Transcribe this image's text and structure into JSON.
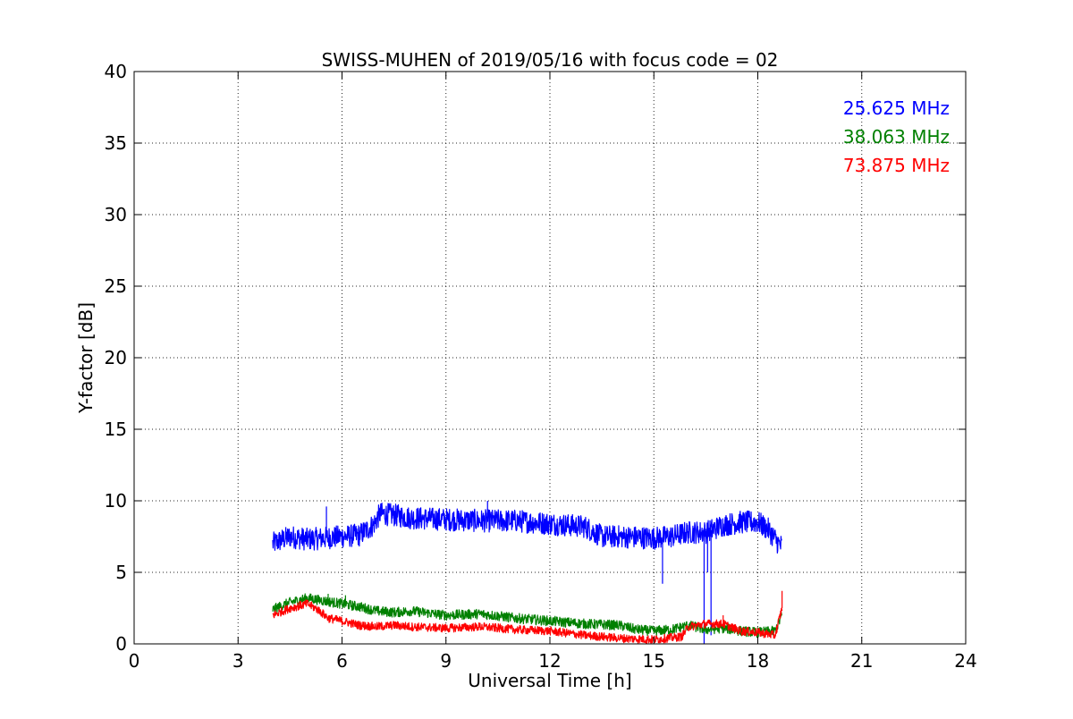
{
  "chart_data": {
    "type": "line",
    "title": "SWISS-MUHEN of 2019/05/16 with focus code = 02",
    "xlabel": "Universal Time [h]",
    "ylabel": "Y-factor [dB]",
    "xlim": [
      0,
      24
    ],
    "ylim": [
      0,
      40
    ],
    "xticks": [
      "0",
      "3",
      "6",
      "9",
      "12",
      "15",
      "18",
      "21",
      "24"
    ],
    "yticks": [
      "0",
      "5",
      "10",
      "15",
      "20",
      "25",
      "30",
      "35",
      "40"
    ],
    "grid": true,
    "legend_position": "top-right",
    "series": [
      {
        "name": "25.625 MHz",
        "color": "#0000ff",
        "noise": 0.8,
        "x": [
          4.0,
          4.5,
          5.0,
          5.5,
          6.0,
          6.5,
          6.9,
          7.1,
          7.5,
          8.0,
          9.0,
          10.0,
          11.0,
          12.0,
          13.0,
          13.5,
          14.0,
          15.0,
          15.5,
          16.0,
          16.5,
          17.0,
          17.5,
          18.0,
          18.3,
          18.6,
          18.7
        ],
        "y": [
          7.0,
          7.5,
          7.3,
          7.4,
          7.5,
          7.6,
          8.3,
          9.1,
          9.0,
          8.8,
          8.7,
          8.6,
          8.6,
          8.4,
          8.2,
          7.5,
          7.5,
          7.4,
          7.5,
          7.8,
          7.8,
          8.3,
          8.5,
          8.5,
          8.0,
          7.0,
          6.8
        ],
        "spikes": [
          {
            "x": 15.25,
            "y": 4.2
          },
          {
            "x": 16.45,
            "y": 0.0
          },
          {
            "x": 16.65,
            "y": 0.6
          },
          {
            "x": 16.55,
            "y": 5.0
          },
          {
            "x": 5.55,
            "y": 9.6
          },
          {
            "x": 10.2,
            "y": 10.0
          }
        ]
      },
      {
        "name": "38.063 MHz",
        "color": "#008000",
        "noise": 0.35,
        "x": [
          4.0,
          4.5,
          5.0,
          5.5,
          6.0,
          6.5,
          7.0,
          7.5,
          8.0,
          9.0,
          10.0,
          11.0,
          12.0,
          13.0,
          14.0,
          14.5,
          15.0,
          15.5,
          16.0,
          16.5,
          17.0,
          17.5,
          18.0,
          18.5,
          18.7
        ],
        "y": [
          2.4,
          2.9,
          3.2,
          3.0,
          2.8,
          2.6,
          2.3,
          2.2,
          2.3,
          2.0,
          2.1,
          1.8,
          1.6,
          1.4,
          1.3,
          1.0,
          0.9,
          1.0,
          1.3,
          1.0,
          1.1,
          0.9,
          0.8,
          0.9,
          2.0
        ],
        "spikes": [
          {
            "x": 5.6,
            "y": 3.5
          },
          {
            "x": 6.1,
            "y": 3.4
          }
        ]
      },
      {
        "name": "73.875 MHz",
        "color": "#ff0000",
        "noise": 0.3,
        "x": [
          4.0,
          4.5,
          5.0,
          5.3,
          5.6,
          6.0,
          6.5,
          7.0,
          7.5,
          8.0,
          9.0,
          10.0,
          11.0,
          12.0,
          13.0,
          14.0,
          15.0,
          15.8,
          16.0,
          16.5,
          17.0,
          17.5,
          18.0,
          18.5,
          18.7
        ],
        "y": [
          2.0,
          2.5,
          2.8,
          2.4,
          1.8,
          1.6,
          1.3,
          1.2,
          1.3,
          1.2,
          1.1,
          1.2,
          1.0,
          0.9,
          0.6,
          0.4,
          0.3,
          0.5,
          1.2,
          1.4,
          1.4,
          0.9,
          0.8,
          0.6,
          2.5
        ],
        "spikes": [
          {
            "x": 18.7,
            "y": 3.7
          },
          {
            "x": 17.0,
            "y": 2.0
          }
        ]
      }
    ]
  }
}
